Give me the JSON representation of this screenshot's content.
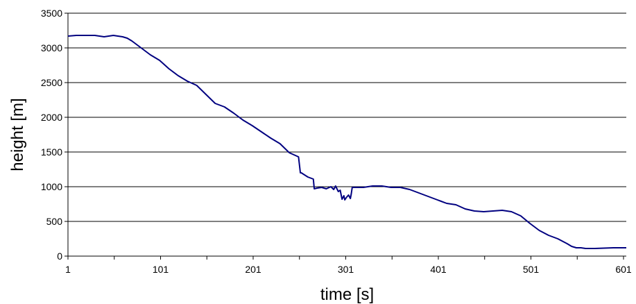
{
  "chart_data": {
    "type": "line",
    "title": "",
    "xlabel": "time [s]",
    "ylabel": "height [m]",
    "xlim": [
      1,
      604
    ],
    "ylim": [
      0,
      3500
    ],
    "x_ticks": [
      "1",
      "101",
      "201",
      "301",
      "401",
      "501",
      "601"
    ],
    "y_ticks": [
      "0",
      "500",
      "1000",
      "1500",
      "2000",
      "2500",
      "3000",
      "3500"
    ],
    "grid": "horizontal",
    "legend": "none",
    "line_color": "#000080",
    "series": [
      {
        "x": [
          1,
          10,
          20,
          30,
          40,
          45,
          50,
          55,
          60,
          65,
          70,
          80,
          90,
          100,
          110,
          120,
          130,
          140,
          150,
          160,
          170,
          180,
          190,
          200,
          210,
          220,
          230,
          240,
          250,
          252,
          253,
          260,
          266,
          267,
          270,
          275,
          280,
          285,
          288,
          290,
          293,
          295,
          297,
          299,
          300,
          302,
          304,
          306,
          307,
          308,
          310,
          320,
          330,
          340,
          350,
          360,
          370,
          380,
          390,
          400,
          410,
          420,
          430,
          440,
          450,
          460,
          470,
          480,
          490,
          500,
          510,
          520,
          530,
          540,
          545,
          550,
          555,
          560,
          570,
          580,
          590,
          600,
          604
        ],
        "values": [
          3170,
          3180,
          3180,
          3180,
          3160,
          3170,
          3180,
          3170,
          3160,
          3140,
          3100,
          3000,
          2900,
          2820,
          2700,
          2600,
          2520,
          2460,
          2330,
          2200,
          2150,
          2060,
          1960,
          1880,
          1790,
          1700,
          1620,
          1490,
          1430,
          1200,
          1200,
          1140,
          1110,
          970,
          980,
          990,
          970,
          1000,
          960,
          1010,
          930,
          950,
          820,
          870,
          810,
          850,
          880,
          830,
          900,
          990,
          990,
          990,
          1010,
          1010,
          990,
          990,
          960,
          910,
          860,
          810,
          760,
          740,
          680,
          650,
          640,
          650,
          660,
          640,
          580,
          470,
          370,
          300,
          250,
          180,
          140,
          120,
          120,
          110,
          110,
          115,
          120,
          120,
          120
        ]
      }
    ]
  }
}
